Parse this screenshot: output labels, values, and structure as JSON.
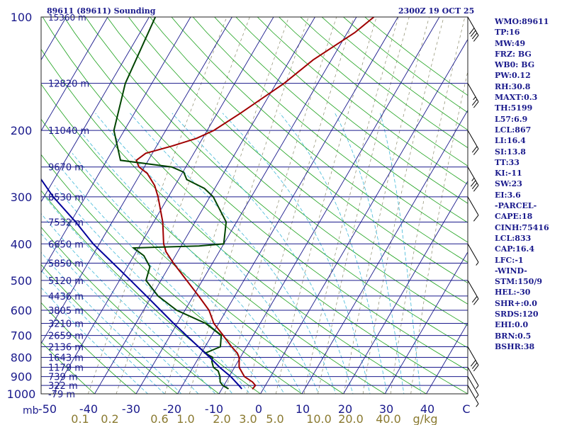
{
  "header": {
    "station_title": "89611 (89611) Sounding",
    "valid_time": "2300Z 19 OCT 25"
  },
  "colors": {
    "isobar": "#1a1a8c",
    "isotherm": "#1a1a8c",
    "dry_adiabat": "#1aa01a",
    "moist_adiabat": "#3fb8d8",
    "mixing_ratio": "#8a8a6a",
    "temperature": "#a00000",
    "dewpoint": "#004400",
    "parcel": "#00009a",
    "wind_barb": "#000000",
    "mixing_ratio_label": "#8a7a30"
  },
  "chart_data": {
    "type": "line",
    "title": "89611 (89611) Sounding",
    "ylabel": "mb",
    "xlabel": "",
    "y_scale": "log-pressure",
    "ylim": [
      1000,
      100
    ],
    "xlim": [
      -50,
      50
    ],
    "pressure_ticks": [
      100,
      200,
      300,
      400,
      500,
      600,
      700,
      800,
      900,
      1000
    ],
    "temperature_ticks": [
      "-50",
      "-40",
      "-30",
      "-20",
      "-10",
      "0",
      "10",
      "20",
      "30",
      "40",
      "C"
    ],
    "mixing_ratio_labels": [
      "0.1",
      "0.2",
      "0.6",
      "1.0",
      "2.0",
      "3.0",
      "5.0",
      "10.0",
      "20.0",
      "40.0",
      "g/kg"
    ],
    "height_labels": [
      {
        "p": 150,
        "label": "12820 m"
      },
      {
        "p": 200,
        "label": "11040 m"
      },
      {
        "p": 250,
        "label": "9670 m"
      },
      {
        "p": 300,
        "label": "8530 m"
      },
      {
        "p": 350,
        "label": "7532 m"
      },
      {
        "p": 400,
        "label": "6650 m"
      },
      {
        "p": 450,
        "label": "5850 m"
      },
      {
        "p": 500,
        "label": "5120 m"
      },
      {
        "p": 550,
        "label": "4436 m"
      },
      {
        "p": 600,
        "label": "3805 m"
      },
      {
        "p": 650,
        "label": "3210 m"
      },
      {
        "p": 700,
        "label": "2659 m"
      },
      {
        "p": 750,
        "label": "2136 m"
      },
      {
        "p": 800,
        "label": "1643 m"
      },
      {
        "p": 850,
        "label": "1179 m"
      },
      {
        "p": 900,
        "label": "739 m"
      },
      {
        "p": 950,
        "label": "322 m"
      },
      {
        "p": 1000,
        "label": "-79 m"
      }
    ],
    "top_height_label": "15360 m",
    "series": [
      {
        "key": "temperature",
        "p": [
          972,
          950,
          930,
          900,
          850,
          800,
          780,
          750,
          700,
          650,
          600,
          550,
          500,
          450,
          420,
          400,
          350,
          300,
          280,
          260,
          250,
          240,
          230,
          220,
          210,
          200,
          180,
          150,
          130,
          110,
          100
        ],
        "t": [
          -2.6,
          -2.4,
          -3.6,
          -6.3,
          -8.9,
          -10.3,
          -11.3,
          -13.6,
          -17.2,
          -21.2,
          -24.2,
          -28.7,
          -33.8,
          -39.4,
          -42.8,
          -44.5,
          -47.8,
          -52.5,
          -54.9,
          -58.4,
          -61.3,
          -62.9,
          -61.6,
          -56.3,
          -51.5,
          -48.4,
          -44.4,
          -38.1,
          -34.4,
          -28.2,
          -25.8
        ]
      },
      {
        "key": "dewpoint",
        "p": [
          970,
          950,
          930,
          900,
          870,
          850,
          820,
          800,
          780,
          750,
          700,
          650,
          600,
          550,
          500,
          460,
          430,
          410,
          405,
          400,
          350,
          300,
          285,
          270,
          258,
          250,
          240,
          200,
          150,
          100
        ],
        "t": [
          -8.4,
          -10.3,
          -11.4,
          -12.2,
          -13.4,
          -15.1,
          -16.3,
          -16.7,
          -19.1,
          -16.3,
          -17.7,
          -23.2,
          -32.0,
          -38.5,
          -43.6,
          -44.6,
          -47.6,
          -51.2,
          -35.7,
          -30.0,
          -32.5,
          -39.2,
          -42.5,
          -48.0,
          -49.8,
          -53.4,
          -66.7,
          -72.5,
          -76.4,
          -78.5
        ]
      },
      {
        "key": "parcel",
        "p": [
          970,
          950,
          900,
          850,
          800,
          750,
          700,
          650,
          600,
          550,
          500,
          450,
          400,
          350,
          300,
          250,
          200,
          150,
          100
        ],
        "t": [
          -5.2,
          -6.4,
          -9.6,
          -13.6,
          -17.4,
          -21.6,
          -26.1,
          -30.9,
          -35.9,
          -41.3,
          -47.3,
          -54.0,
          -61.5,
          -68.8,
          -77.8,
          -87.0,
          -96.7,
          -111.8,
          -126.7
        ]
      }
    ],
    "wind_barbs": [
      {
        "p": 100,
        "dir": 150,
        "kt": 40
      },
      {
        "p": 150,
        "dir": 150,
        "kt": 25
      },
      {
        "p": 200,
        "dir": 150,
        "kt": 20
      },
      {
        "p": 250,
        "dir": 150,
        "kt": 35
      },
      {
        "p": 300,
        "dir": 150,
        "kt": 10
      },
      {
        "p": 400,
        "dir": 150,
        "kt": 5
      },
      {
        "p": 500,
        "dir": 150,
        "kt": 20
      },
      {
        "p": 750,
        "dir": 150,
        "kt": 30
      },
      {
        "p": 850,
        "dir": 150,
        "kt": 5
      },
      {
        "p": 900,
        "dir": 150,
        "kt": 5
      },
      {
        "p": 950,
        "dir": 150,
        "kt": 5
      }
    ]
  },
  "indices": [
    "WMO:89611",
    "TP:16",
    "MW:49",
    "FRZ: BG",
    "WB0: BG",
    "PW:0.12",
    "RH:30.8",
    "MAXT:0.3",
    "TH:5199",
    "L57:6.9",
    "LCL:867",
    "LI:16.4",
    "SI:13.8",
    "TT:33",
    "KI:-11",
    "SW:23",
    "EI:3.6",
    "-PARCEL-",
    "CAPE:18",
    "CINH:75416",
    "LCL:833",
    "CAP:16.4",
    "LFC:-1",
    "-WIND-",
    "STM:150/9",
    "HEL:-30",
    "SHR+:0.0",
    "SRDS:120",
    "EHI:0.0",
    "BRN:0.5",
    "BSHR:38"
  ]
}
